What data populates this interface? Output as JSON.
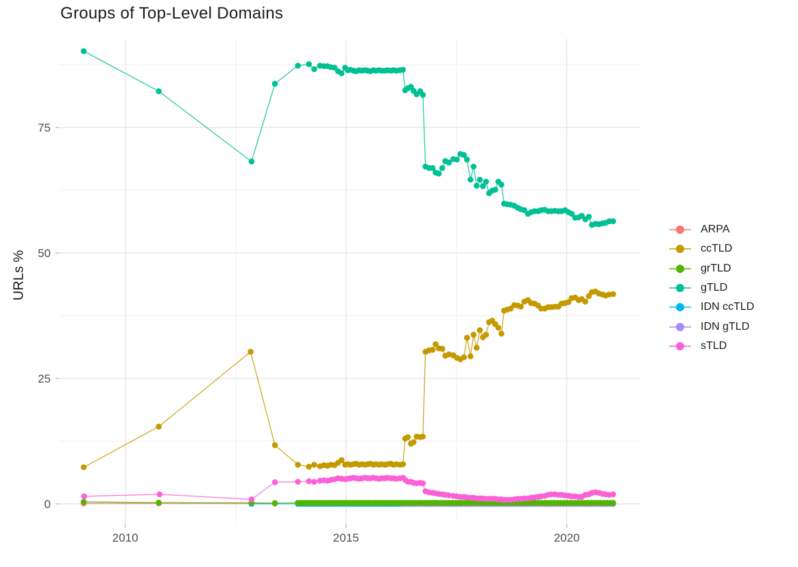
{
  "title": "Groups of Top-Level Domains",
  "axes": {
    "y_label": "URLs %",
    "y_tick_labels": [
      "0",
      "25",
      "50",
      "75"
    ],
    "x_tick_labels": [
      "2010",
      "2015",
      "2020"
    ]
  },
  "legend": {
    "items": [
      {
        "label": "ARPA",
        "color": "#F8766D"
      },
      {
        "label": "ccTLD",
        "color": "#C49A00"
      },
      {
        "label": "grTLD",
        "color": "#53B400"
      },
      {
        "label": "gTLD",
        "color": "#00C094"
      },
      {
        "label": "IDN ccTLD",
        "color": "#00B6EB"
      },
      {
        "label": "IDN gTLD",
        "color": "#A58AFF"
      },
      {
        "label": "sTLD",
        "color": "#FB61D7"
      }
    ]
  },
  "chart_data": {
    "type": "line",
    "title": "Groups of Top-Level Domains",
    "xlabel": "",
    "ylabel": "URLs %",
    "xlim": [
      2008.53,
      2021.65
    ],
    "ylim": [
      -3.7,
      92.6
    ],
    "x_major_ticks": [
      2010,
      2015,
      2020
    ],
    "x_minor_ticks": [
      2012.5,
      2017.5
    ],
    "y_major_ticks": [
      0,
      25,
      50,
      75
    ],
    "y_minor_ticks": [
      12.5,
      37.5,
      62.5,
      87.5
    ],
    "grid": true,
    "legend_position": "right",
    "point_radius": 4.3,
    "x_grid_a": [
      2013.91,
      2014.16,
      2014.28,
      2014.41,
      2014.5,
      2014.58,
      2014.66,
      2014.74,
      2014.82,
      2014.9,
      2014.98,
      2015.04,
      2015.1,
      2015.17,
      2015.23,
      2015.3,
      2015.36,
      2015.43,
      2015.49,
      2015.55,
      2015.62,
      2015.68,
      2015.75,
      2015.81,
      2015.88,
      2015.94,
      2016.01,
      2016.07,
      2016.14,
      2016.22,
      2016.29,
      2016.34,
      2016.4,
      2016.47,
      2016.53,
      2016.6,
      2016.68,
      2016.74
    ],
    "x_grid_b": [
      2016.8,
      2016.88,
      2016.96,
      2017.03,
      2017.1,
      2017.18,
      2017.25,
      2017.33,
      2017.43,
      2017.51,
      2017.59,
      2017.67,
      2017.74,
      2017.82,
      2017.89,
      2017.96,
      2018.03,
      2018.1,
      2018.17,
      2018.24,
      2018.31,
      2018.38,
      2018.45,
      2018.52,
      2018.58,
      2018.65,
      2018.73,
      2018.81,
      2018.89,
      2018.96,
      2019.04,
      2019.12,
      2019.19,
      2019.27,
      2019.35,
      2019.42,
      2019.5,
      2019.58,
      2019.65,
      2019.73,
      2019.81,
      2019.88,
      2019.96,
      2020.04,
      2020.11,
      2020.19,
      2020.27,
      2020.34,
      2020.42,
      2020.5,
      2020.57,
      2020.65,
      2020.73,
      2020.81,
      2020.88,
      2020.96,
      2021.05
    ],
    "draw_order": [
      "ARPA",
      "IDN ccTLD",
      "IDN gTLD",
      "grTLD",
      "ccTLD",
      "gTLD",
      "sTLD"
    ],
    "series": [
      {
        "name": "ARPA",
        "color": "#F8766D",
        "early": [
          [
            2009.06,
            0.1
          ],
          [
            2010.76,
            0.1
          ],
          [
            2012.86,
            0.05
          ],
          [
            2013.39,
            0.05
          ]
        ]
      },
      {
        "name": "ccTLD",
        "color": "#C49A00",
        "early": [
          [
            2009.06,
            7.3
          ],
          [
            2010.76,
            15.4
          ],
          [
            2012.84,
            30.3
          ],
          [
            2013.39,
            11.7
          ]
        ],
        "grid_a": [
          7.8,
          7.4,
          7.8,
          7.5,
          7.7,
          7.6,
          7.8,
          7.7,
          8.2,
          8.7,
          7.8,
          7.9,
          7.8,
          7.9,
          8.0,
          7.8,
          7.9,
          7.8,
          7.9,
          8.0,
          7.8,
          7.9,
          7.8,
          7.9,
          7.8,
          7.9,
          8.0,
          7.8,
          7.9,
          7.8,
          7.9,
          13.0,
          13.3,
          12.0,
          12.3,
          13.4,
          13.3,
          13.4
        ],
        "grid_b": [
          30.3,
          30.6,
          30.7,
          31.8,
          31.0,
          30.9,
          29.5,
          29.8,
          29.6,
          29.1,
          28.8,
          29.2,
          33.1,
          29.4,
          33.7,
          31.1,
          34.6,
          33.2,
          33.7,
          36.2,
          36.5,
          35.8,
          35.1,
          33.9,
          38.5,
          38.7,
          38.9,
          39.6,
          39.5,
          39.3,
          40.3,
          40.6,
          40.0,
          39.9,
          39.5,
          38.9,
          38.9,
          39.2,
          39.2,
          39.3,
          39.3,
          39.9,
          40.0,
          40.2,
          41.0,
          41.1,
          40.6,
          40.8,
          40.3,
          41.4,
          42.2,
          42.3,
          41.9,
          41.7,
          41.5,
          41.7,
          41.8
        ]
      },
      {
        "name": "grTLD",
        "color": "#53B400",
        "early": [
          [
            2009.06,
            0.4
          ],
          [
            2010.76,
            0.25
          ],
          [
            2012.86,
            0.2
          ],
          [
            2013.39,
            0.15
          ]
        ],
        "flat": {
          "from": 2013.91,
          "to": 2021.05,
          "step": 0.07,
          "value": 0.2
        }
      },
      {
        "name": "gTLD",
        "color": "#00C094",
        "early": [
          [
            2009.06,
            90.2
          ],
          [
            2010.76,
            82.2
          ],
          [
            2012.86,
            68.2
          ],
          [
            2013.39,
            83.7
          ]
        ],
        "grid_a": [
          87.3,
          87.6,
          86.6,
          87.3,
          87.2,
          87.2,
          87.0,
          86.9,
          86.2,
          85.8,
          86.9,
          86.4,
          86.5,
          86.3,
          86.2,
          86.4,
          86.3,
          86.4,
          86.3,
          86.2,
          86.4,
          86.3,
          86.4,
          86.3,
          86.3,
          86.4,
          86.3,
          86.4,
          86.3,
          86.4,
          86.5,
          82.4,
          82.8,
          83.1,
          82.3,
          81.6,
          82.2,
          81.5
        ],
        "grid_b": [
          67.2,
          66.9,
          66.9,
          66.0,
          65.8,
          66.9,
          68.3,
          68.0,
          68.7,
          68.6,
          69.7,
          69.5,
          68.6,
          64.6,
          67.2,
          63.4,
          64.6,
          63.3,
          64.2,
          61.9,
          62.4,
          62.6,
          64.2,
          63.6,
          59.8,
          59.7,
          59.6,
          59.4,
          59.0,
          58.7,
          58.5,
          57.8,
          58.1,
          58.3,
          58.3,
          58.5,
          58.6,
          58.3,
          58.3,
          58.4,
          58.3,
          58.3,
          58.5,
          58.1,
          57.8,
          57.0,
          57.1,
          57.4,
          56.7,
          57.2,
          55.6,
          55.8,
          55.7,
          55.9,
          56.0,
          56.3,
          56.3
        ]
      },
      {
        "name": "IDN ccTLD",
        "color": "#00B6EB",
        "early": [
          [
            2012.86,
            0.0
          ]
        ],
        "flat": {
          "from": 2013.91,
          "to": 2021.05,
          "step": 0.07,
          "value": 0.0
        }
      },
      {
        "name": "IDN gTLD",
        "color": "#A58AFF",
        "flat": {
          "from": 2016.29,
          "to": 2021.05,
          "step": 0.07,
          "value": 0.0
        }
      },
      {
        "name": "sTLD",
        "color": "#FB61D7",
        "early": [
          [
            2009.07,
            1.5
          ],
          [
            2010.78,
            1.9
          ],
          [
            2012.86,
            0.9
          ],
          [
            2013.39,
            4.3
          ]
        ],
        "grid_a": [
          4.4,
          4.5,
          4.4,
          4.6,
          4.7,
          4.6,
          4.8,
          4.9,
          5.1,
          5.0,
          4.9,
          5.0,
          5.1,
          5.2,
          5.1,
          5.0,
          5.1,
          5.2,
          5.1,
          5.1,
          5.2,
          5.1,
          5.0,
          5.1,
          5.1,
          5.2,
          5.1,
          5.1,
          5.0,
          5.1,
          5.2,
          4.8,
          4.4,
          4.4,
          4.2,
          4.1,
          4.2,
          4.1
        ],
        "grid_b": [
          2.5,
          2.3,
          2.2,
          2.1,
          2.0,
          1.9,
          1.8,
          1.7,
          1.6,
          1.5,
          1.4,
          1.4,
          1.3,
          1.2,
          1.2,
          1.1,
          1.1,
          1.1,
          1.0,
          1.0,
          1.0,
          1.0,
          0.9,
          0.9,
          0.8,
          0.8,
          0.8,
          0.9,
          1.0,
          1.0,
          1.1,
          1.1,
          1.2,
          1.3,
          1.4,
          1.5,
          1.6,
          1.8,
          1.9,
          1.9,
          1.8,
          1.8,
          1.7,
          1.6,
          1.5,
          1.5,
          1.4,
          1.4,
          1.8,
          1.9,
          2.2,
          2.3,
          2.2,
          2.0,
          1.9,
          1.8,
          1.9
        ]
      }
    ]
  },
  "style": {
    "grid_major_color": "#e3e3e3",
    "grid_minor_color": "#f0f0f0",
    "tick_color": "#b5b5b5",
    "tick_label_color": "#4d4d4d",
    "background": "#ffffff"
  }
}
